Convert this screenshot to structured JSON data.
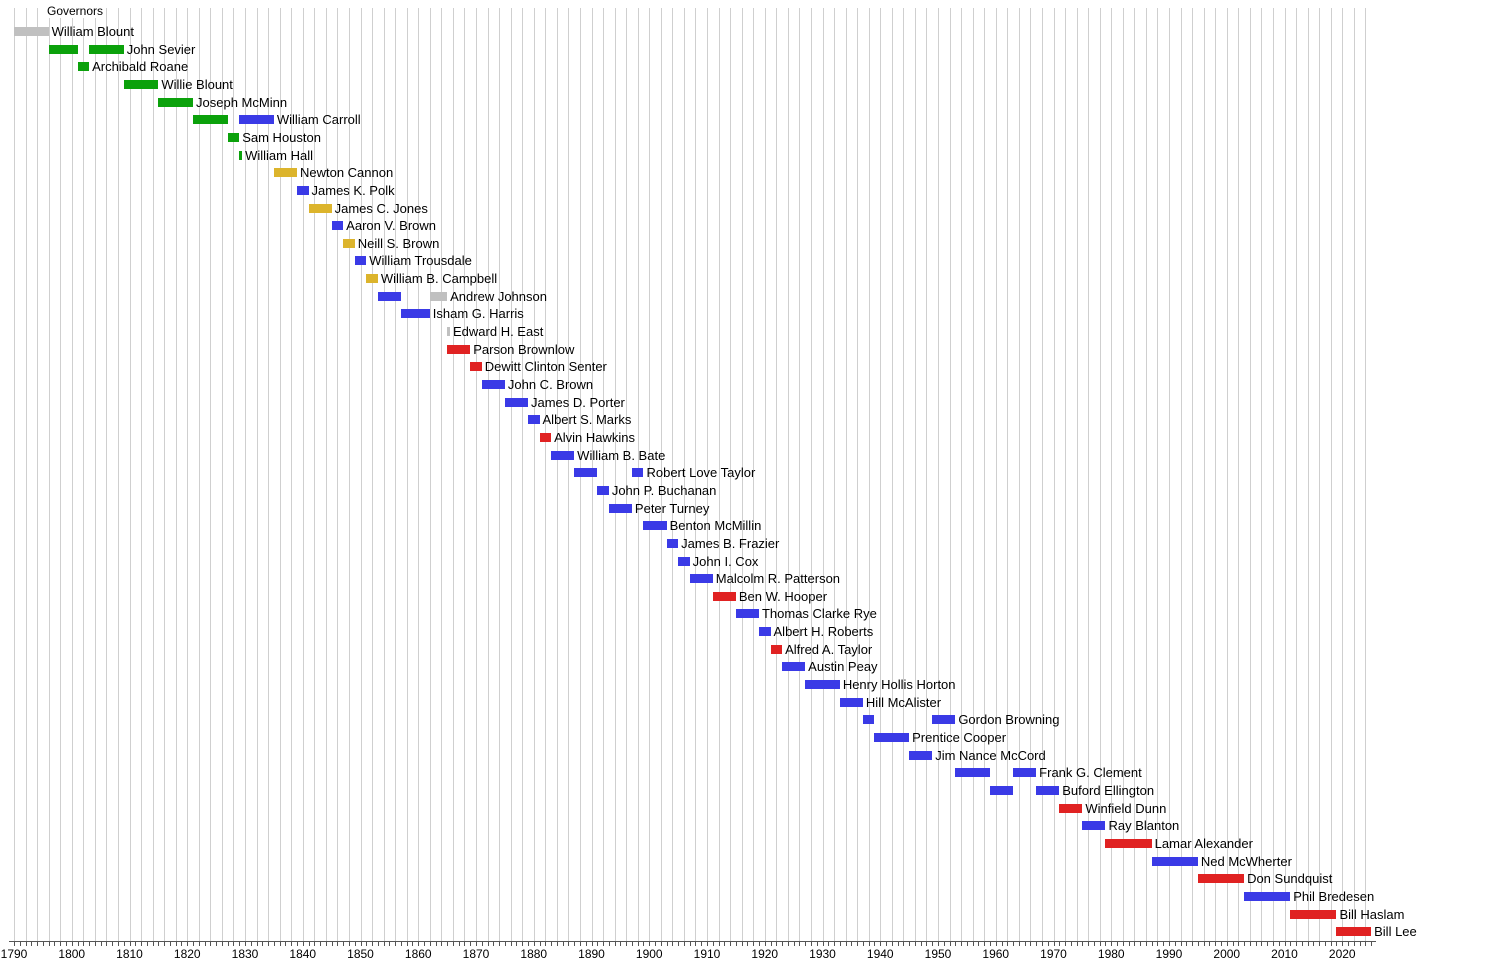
{
  "chart_data": {
    "type": "bar",
    "variant": "horizontal-timeline-gantt",
    "title": "Governors",
    "x_axis": {
      "start": 1790,
      "end": 2025,
      "tick_interval": 1,
      "gridline_interval": 2,
      "label_interval": 10,
      "decade_labels": [
        "1790",
        "1800",
        "1810",
        "1820",
        "1830",
        "1840",
        "1850",
        "1860",
        "1870",
        "1880",
        "1890",
        "1900",
        "1910",
        "1920",
        "1930",
        "1940",
        "1950",
        "1960",
        "1970",
        "1980",
        "1990",
        "2000",
        "2010",
        "2020"
      ]
    },
    "party_colors": {
      "independent": "#c0c0c0",
      "democratic_republican": "#0ba10b",
      "democratic": "#3a3ae6",
      "whig": "#dcb42c",
      "republican": "#e02222"
    },
    "governors": [
      {
        "name": "William Blount",
        "terms": [
          {
            "start": 1790,
            "end": 1796,
            "party": "independent"
          }
        ]
      },
      {
        "name": "John Sevier",
        "terms": [
          {
            "start": 1796,
            "end": 1801,
            "party": "democratic_republican"
          },
          {
            "start": 1803,
            "end": 1809,
            "party": "democratic_republican"
          }
        ]
      },
      {
        "name": "Archibald Roane",
        "terms": [
          {
            "start": 1801,
            "end": 1803,
            "party": "democratic_republican"
          }
        ]
      },
      {
        "name": "Willie Blount",
        "terms": [
          {
            "start": 1809,
            "end": 1815,
            "party": "democratic_republican"
          }
        ]
      },
      {
        "name": "Joseph McMinn",
        "terms": [
          {
            "start": 1815,
            "end": 1821,
            "party": "democratic_republican"
          }
        ]
      },
      {
        "name": "William Carroll",
        "terms": [
          {
            "start": 1821,
            "end": 1827,
            "party": "democratic_republican"
          },
          {
            "start": 1829,
            "end": 1835,
            "party": "democratic"
          }
        ]
      },
      {
        "name": "Sam Houston",
        "terms": [
          {
            "start": 1827,
            "end": 1829,
            "party": "democratic_republican"
          }
        ]
      },
      {
        "name": "William Hall",
        "terms": [
          {
            "start": 1829,
            "end": 1829.5,
            "party": "democratic_republican"
          }
        ]
      },
      {
        "name": "Newton Cannon",
        "terms": [
          {
            "start": 1835,
            "end": 1839,
            "party": "whig"
          }
        ]
      },
      {
        "name": "James K. Polk",
        "terms": [
          {
            "start": 1839,
            "end": 1841,
            "party": "democratic"
          }
        ]
      },
      {
        "name": "James C. Jones",
        "terms": [
          {
            "start": 1841,
            "end": 1845,
            "party": "whig"
          }
        ]
      },
      {
        "name": "Aaron V. Brown",
        "terms": [
          {
            "start": 1845,
            "end": 1847,
            "party": "democratic"
          }
        ]
      },
      {
        "name": "Neill S. Brown",
        "terms": [
          {
            "start": 1847,
            "end": 1849,
            "party": "whig"
          }
        ]
      },
      {
        "name": "William Trousdale",
        "terms": [
          {
            "start": 1849,
            "end": 1851,
            "party": "democratic"
          }
        ]
      },
      {
        "name": "William B. Campbell",
        "terms": [
          {
            "start": 1851,
            "end": 1853,
            "party": "whig"
          }
        ]
      },
      {
        "name": "Andrew Johnson",
        "terms": [
          {
            "start": 1853,
            "end": 1857,
            "party": "democratic"
          },
          {
            "start": 1862,
            "end": 1865,
            "party": "independent"
          }
        ]
      },
      {
        "name": "Isham G. Harris",
        "terms": [
          {
            "start": 1857,
            "end": 1862,
            "party": "democratic"
          }
        ]
      },
      {
        "name": "Edward H. East",
        "terms": [
          {
            "start": 1865,
            "end": 1865.5,
            "party": "independent"
          }
        ]
      },
      {
        "name": "Parson Brownlow",
        "terms": [
          {
            "start": 1865,
            "end": 1869,
            "party": "republican"
          }
        ]
      },
      {
        "name": "Dewitt Clinton Senter",
        "terms": [
          {
            "start": 1869,
            "end": 1871,
            "party": "republican"
          }
        ]
      },
      {
        "name": "John C. Brown",
        "terms": [
          {
            "start": 1871,
            "end": 1875,
            "party": "democratic"
          }
        ]
      },
      {
        "name": "James D. Porter",
        "terms": [
          {
            "start": 1875,
            "end": 1879,
            "party": "democratic"
          }
        ]
      },
      {
        "name": "Albert S. Marks",
        "terms": [
          {
            "start": 1879,
            "end": 1881,
            "party": "democratic"
          }
        ]
      },
      {
        "name": "Alvin Hawkins",
        "terms": [
          {
            "start": 1881,
            "end": 1883,
            "party": "republican"
          }
        ]
      },
      {
        "name": "William B. Bate",
        "terms": [
          {
            "start": 1883,
            "end": 1887,
            "party": "democratic"
          }
        ]
      },
      {
        "name": "Robert Love Taylor",
        "terms": [
          {
            "start": 1887,
            "end": 1891,
            "party": "democratic"
          },
          {
            "start": 1897,
            "end": 1899,
            "party": "democratic"
          }
        ]
      },
      {
        "name": "John P. Buchanan",
        "terms": [
          {
            "start": 1891,
            "end": 1893,
            "party": "democratic"
          }
        ]
      },
      {
        "name": "Peter Turney",
        "terms": [
          {
            "start": 1893,
            "end": 1897,
            "party": "democratic"
          }
        ]
      },
      {
        "name": "Benton McMillin",
        "terms": [
          {
            "start": 1899,
            "end": 1903,
            "party": "democratic"
          }
        ]
      },
      {
        "name": "James B. Frazier",
        "terms": [
          {
            "start": 1903,
            "end": 1905,
            "party": "democratic"
          }
        ]
      },
      {
        "name": "John I. Cox",
        "terms": [
          {
            "start": 1905,
            "end": 1907,
            "party": "democratic"
          }
        ]
      },
      {
        "name": "Malcolm R. Patterson",
        "terms": [
          {
            "start": 1907,
            "end": 1911,
            "party": "democratic"
          }
        ]
      },
      {
        "name": "Ben W. Hooper",
        "terms": [
          {
            "start": 1911,
            "end": 1915,
            "party": "republican"
          }
        ]
      },
      {
        "name": "Thomas Clarke Rye",
        "terms": [
          {
            "start": 1915,
            "end": 1919,
            "party": "democratic"
          }
        ]
      },
      {
        "name": "Albert H. Roberts",
        "terms": [
          {
            "start": 1919,
            "end": 1921,
            "party": "democratic"
          }
        ]
      },
      {
        "name": "Alfred A. Taylor",
        "terms": [
          {
            "start": 1921,
            "end": 1923,
            "party": "republican"
          }
        ]
      },
      {
        "name": "Austin Peay",
        "terms": [
          {
            "start": 1923,
            "end": 1927,
            "party": "democratic"
          }
        ]
      },
      {
        "name": "Henry Hollis Horton",
        "terms": [
          {
            "start": 1927,
            "end": 1933,
            "party": "democratic"
          }
        ]
      },
      {
        "name": "Hill McAlister",
        "terms": [
          {
            "start": 1933,
            "end": 1937,
            "party": "democratic"
          }
        ]
      },
      {
        "name": "Gordon Browning",
        "terms": [
          {
            "start": 1937,
            "end": 1939,
            "party": "democratic"
          },
          {
            "start": 1949,
            "end": 1953,
            "party": "democratic"
          }
        ]
      },
      {
        "name": "Prentice Cooper",
        "terms": [
          {
            "start": 1939,
            "end": 1945,
            "party": "democratic"
          }
        ]
      },
      {
        "name": "Jim Nance McCord",
        "terms": [
          {
            "start": 1945,
            "end": 1949,
            "party": "democratic"
          }
        ]
      },
      {
        "name": "Frank G. Clement",
        "terms": [
          {
            "start": 1953,
            "end": 1959,
            "party": "democratic"
          },
          {
            "start": 1963,
            "end": 1967,
            "party": "democratic"
          }
        ]
      },
      {
        "name": "Buford Ellington",
        "terms": [
          {
            "start": 1959,
            "end": 1963,
            "party": "democratic"
          },
          {
            "start": 1967,
            "end": 1971,
            "party": "democratic"
          }
        ]
      },
      {
        "name": "Winfield Dunn",
        "terms": [
          {
            "start": 1971,
            "end": 1975,
            "party": "republican"
          }
        ]
      },
      {
        "name": "Ray Blanton",
        "terms": [
          {
            "start": 1975,
            "end": 1979,
            "party": "democratic"
          }
        ]
      },
      {
        "name": "Lamar Alexander",
        "terms": [
          {
            "start": 1979,
            "end": 1987,
            "party": "republican"
          }
        ]
      },
      {
        "name": "Ned McWherter",
        "terms": [
          {
            "start": 1987,
            "end": 1995,
            "party": "democratic"
          }
        ]
      },
      {
        "name": "Don Sundquist",
        "terms": [
          {
            "start": 1995,
            "end": 2003,
            "party": "republican"
          }
        ]
      },
      {
        "name": "Phil Bredesen",
        "terms": [
          {
            "start": 2003,
            "end": 2011,
            "party": "democratic"
          }
        ]
      },
      {
        "name": "Bill Haslam",
        "terms": [
          {
            "start": 2011,
            "end": 2019,
            "party": "republican"
          }
        ]
      },
      {
        "name": "Bill Lee",
        "terms": [
          {
            "start": 2019,
            "end": 2025,
            "party": "republican"
          }
        ]
      }
    ]
  }
}
